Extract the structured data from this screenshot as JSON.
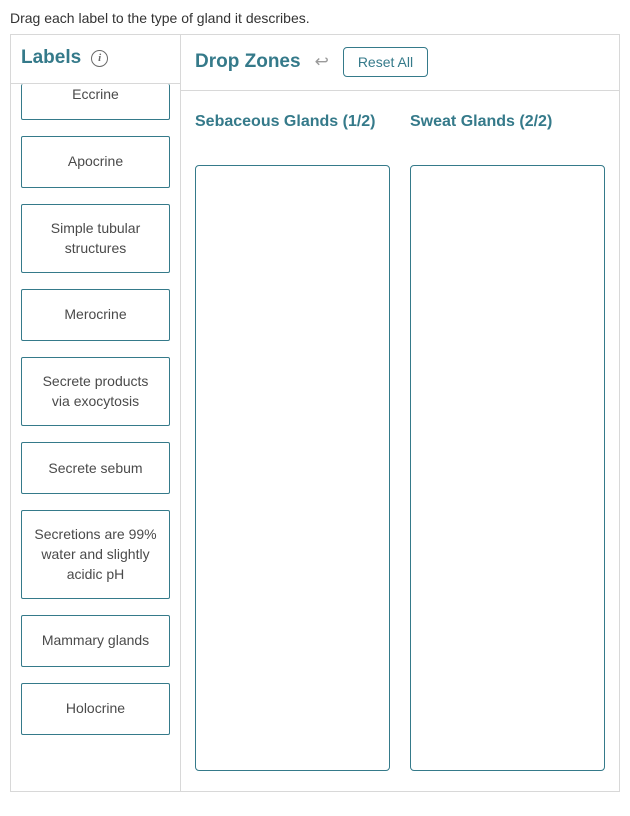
{
  "instruction": "Drag each label to the type of gland it describes.",
  "labelsPanel": {
    "title": "Labels",
    "info_glyph": "i",
    "items": [
      {
        "text": "Eccrine"
      },
      {
        "text": "Apocrine"
      },
      {
        "text": "Simple tubular structures"
      },
      {
        "text": "Merocrine"
      },
      {
        "text": "Secrete products via exocytosis"
      },
      {
        "text": "Secrete sebum"
      },
      {
        "text": "Secretions are 99% water and slightly acidic pH"
      },
      {
        "text": "Mammary glands"
      },
      {
        "text": "Holocrine"
      }
    ]
  },
  "dropzonesPanel": {
    "title": "Drop Zones",
    "undo_glyph": "↩",
    "reset_label": "Reset All",
    "zones": [
      {
        "title": "Sebaceous Glands (1/2)"
      },
      {
        "title": "Sweat Glands (2/2)"
      }
    ]
  },
  "colors": {
    "accent": "#357a8a",
    "border": "#d8d8d8",
    "text": "#333333",
    "label_text": "#4a4a4a",
    "muted": "#9a9a9a",
    "background": "#ffffff"
  }
}
